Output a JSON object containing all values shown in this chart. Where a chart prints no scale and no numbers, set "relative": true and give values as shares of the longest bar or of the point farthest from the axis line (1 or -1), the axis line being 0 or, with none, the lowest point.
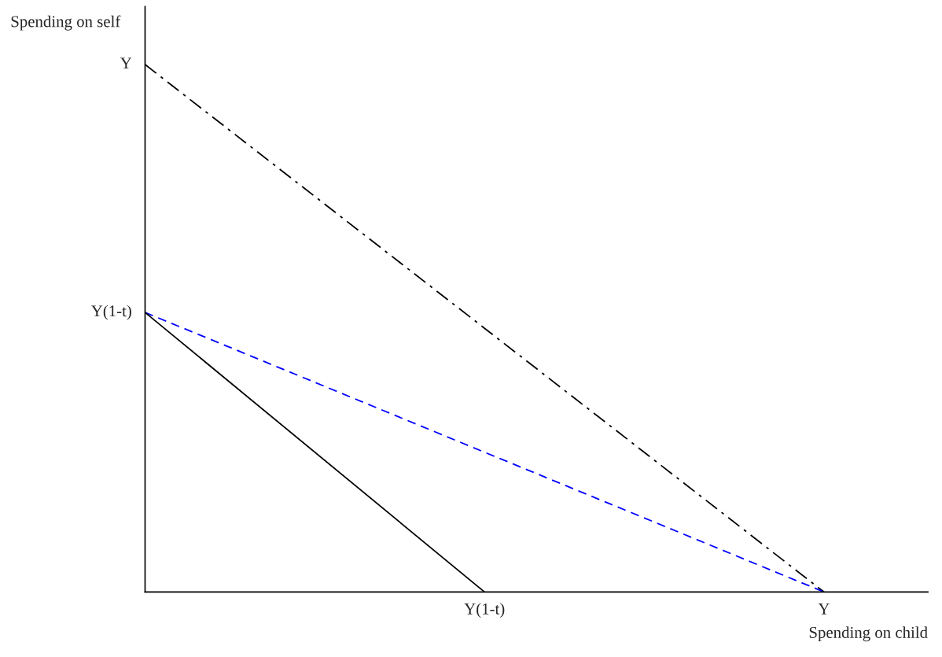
{
  "chart_data": {
    "type": "line",
    "relative": true,
    "xlabel": "Spending on child",
    "ylabel": "Spending on self",
    "categories": [
      null,
      "Y(1-t)",
      "Y"
    ],
    "annotations": [
      "Y",
      "Y(1-t)"
    ],
    "series": [
      {
        "color": "#000000",
        "line_style": "dashdot",
        "values": [
          1,
          0.5,
          0
        ]
      },
      {
        "color": "#0000ff",
        "line_style": "dashed",
        "values": [
          0.53,
          0.265,
          0
        ]
      },
      {
        "color": "#000000",
        "line_style": "solid",
        "values": [
          0.53,
          0,
          null
        ]
      }
    ]
  }
}
